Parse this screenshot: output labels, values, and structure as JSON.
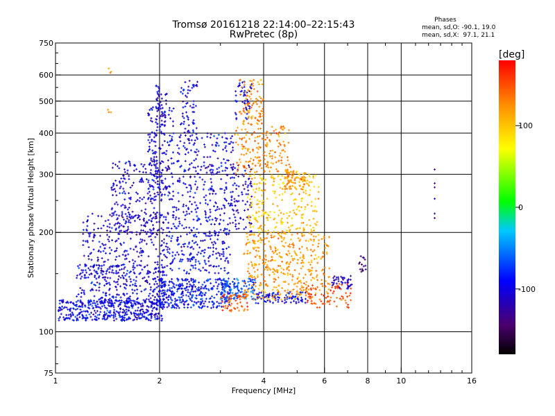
{
  "chart_data": {
    "type": "scatter",
    "title": "Tromsø 20161218 22:14:00–22:15:43",
    "subtitle": "RwPretec (8p)",
    "xlabel": "Frequency [MHz]",
    "ylabel": "Stationary phase Virtual Height [km]",
    "x_scale": "log",
    "y_scale": "log",
    "xlim": [
      1,
      16
    ],
    "ylim": [
      75,
      750
    ],
    "x_ticks": [
      1,
      2,
      4,
      6,
      8,
      10,
      16
    ],
    "y_ticks": [
      75,
      100,
      200,
      300,
      400,
      500,
      600,
      750
    ],
    "x_grid": [
      2,
      4,
      6,
      8,
      10
    ],
    "y_grid": [
      100,
      200,
      300,
      400,
      500,
      600
    ],
    "grid": true,
    "colorbar": {
      "label": "[deg]",
      "range": [
        -180,
        180
      ],
      "ticks": [
        100,
        0,
        -100
      ],
      "colors": [
        "#000000",
        "#4b006e",
        "#0000ff",
        "#00c8ff",
        "#00ff00",
        "#ffff00",
        "#ff8c00",
        "#ff0000"
      ]
    },
    "stats": {
      "header": "Phases",
      "o_line": "mean, sd,O: -90.1, 19.0",
      "x_line": "mean, sd,X:  97.1, 21.1"
    },
    "series": [
      {
        "name": "O",
        "clusters": [
          {
            "x": [
              1.02,
              2.05
            ],
            "y": [
              108,
              125
            ],
            "n": 420,
            "phase": -95
          },
          {
            "x": [
              1.15,
              2.1
            ],
            "y": [
              120,
              160
            ],
            "n": 330,
            "phase": -100
          },
          {
            "x": [
              1.2,
              2.1
            ],
            "y": [
              150,
              230
            ],
            "n": 260,
            "phase": -105
          },
          {
            "x": [
              1.45,
              2.05
            ],
            "y": [
              200,
              330
            ],
            "n": 200,
            "phase": -105
          },
          {
            "x": [
              1.85,
              2.2
            ],
            "y": [
              250,
              480
            ],
            "n": 180,
            "phase": -100
          },
          {
            "x": [
              1.95,
              2.1
            ],
            "y": [
              420,
              560
            ],
            "n": 50,
            "phase": -105
          },
          {
            "x": [
              2.0,
              3.2
            ],
            "y": [
              118,
              145
            ],
            "n": 320,
            "phase": -90
          },
          {
            "x": [
              2.1,
              3.2
            ],
            "y": [
              150,
              240
            ],
            "n": 280,
            "phase": -95
          },
          {
            "x": [
              2.25,
              3.3
            ],
            "y": [
              240,
              400
            ],
            "n": 220,
            "phase": -100
          },
          {
            "x": [
              2.3,
              2.6
            ],
            "y": [
              400,
              580
            ],
            "n": 60,
            "phase": -100
          },
          {
            "x": [
              3.0,
              3.8
            ],
            "y": [
              125,
              145
            ],
            "n": 120,
            "phase": -65
          },
          {
            "x": [
              3.2,
              3.7
            ],
            "y": [
              200,
              320
            ],
            "n": 90,
            "phase": -110
          },
          {
            "x": [
              3.3,
              3.7
            ],
            "y": [
              440,
              580
            ],
            "n": 50,
            "phase": -100
          },
          {
            "x": [
              3.8,
              5.3
            ],
            "y": [
              122,
              132
            ],
            "n": 90,
            "phase": -95
          },
          {
            "x": [
              6.3,
              7.2
            ],
            "y": [
              135,
              148
            ],
            "n": 45,
            "phase": -110
          },
          {
            "x": [
              7.5,
              7.9
            ],
            "y": [
              150,
              170
            ],
            "n": 15,
            "phase": -130
          },
          {
            "x": [
              12.5,
              12.5
            ],
            "y": [
              220,
              350
            ],
            "n": 6,
            "phase": -120
          }
        ]
      },
      {
        "name": "X",
        "clusters": [
          {
            "x": [
              3.0,
              3.6
            ],
            "y": [
              115,
              130
            ],
            "n": 60,
            "phase": 150
          },
          {
            "x": [
              3.5,
              6.2
            ],
            "y": [
              125,
              200
            ],
            "n": 420,
            "phase": 120
          },
          {
            "x": [
              3.6,
              5.8
            ],
            "y": [
              200,
              300
            ],
            "n": 240,
            "phase": 100
          },
          {
            "x": [
              3.3,
              4.8
            ],
            "y": [
              300,
              420
            ],
            "n": 180,
            "phase": 125
          },
          {
            "x": [
              3.4,
              4.0
            ],
            "y": [
              420,
              580
            ],
            "n": 90,
            "phase": 125
          },
          {
            "x": [
              4.6,
              5.3
            ],
            "y": [
              270,
              310
            ],
            "n": 80,
            "phase": 120
          },
          {
            "x": [
              5.3,
              7.2
            ],
            "y": [
              118,
              140
            ],
            "n": 80,
            "phase": 150
          },
          {
            "x": [
              1.4,
              1.45
            ],
            "y": [
              460,
              630
            ],
            "n": 6,
            "phase": 130
          }
        ]
      }
    ]
  }
}
